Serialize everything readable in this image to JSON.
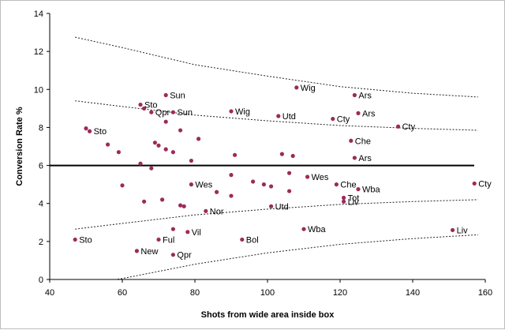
{
  "chart_data": {
    "type": "scatter",
    "xlabel": "Shots from wide area inside box",
    "ylabel": "Conversion Rate %",
    "xlim": [
      40,
      160
    ],
    "ylim": [
      0,
      14
    ],
    "x_ticks": [
      "40",
      "60",
      "80",
      "100",
      "120",
      "140",
      "160"
    ],
    "y_ticks": [
      "0",
      "2",
      "4",
      "6",
      "8",
      "10",
      "12",
      "14"
    ],
    "grid": false,
    "legend": "none",
    "marker_color": "#9c2a5a",
    "mean_line": {
      "y": 6,
      "color": "#000000"
    },
    "control_limits": {
      "upper_outer": [
        [
          47,
          12.75
        ],
        [
          60,
          12.2
        ],
        [
          80,
          11.3
        ],
        [
          100,
          10.7
        ],
        [
          120,
          10.15
        ],
        [
          140,
          9.8
        ],
        [
          158,
          9.6
        ]
      ],
      "upper_inner": [
        [
          47,
          9.4
        ],
        [
          60,
          9.1
        ],
        [
          80,
          8.65
        ],
        [
          100,
          8.35
        ],
        [
          120,
          8.1
        ],
        [
          140,
          7.95
        ],
        [
          158,
          7.85
        ]
      ],
      "lower_inner": [
        [
          47,
          2.65
        ],
        [
          60,
          2.95
        ],
        [
          80,
          3.4
        ],
        [
          100,
          3.7
        ],
        [
          120,
          3.95
        ],
        [
          140,
          4.1
        ],
        [
          158,
          4.2
        ]
      ],
      "lower_outer": [
        [
          47,
          -0.6
        ],
        [
          55,
          -0.1
        ],
        [
          60,
          0.05
        ],
        [
          80,
          0.8
        ],
        [
          100,
          1.4
        ],
        [
          120,
          1.85
        ],
        [
          140,
          2.15
        ],
        [
          158,
          2.35
        ]
      ]
    },
    "points": [
      {
        "x": 47,
        "y": 2.1,
        "label": "Sto"
      },
      {
        "x": 50,
        "y": 7.95,
        "label": ""
      },
      {
        "x": 51,
        "y": 7.8,
        "label": "Sto"
      },
      {
        "x": 56,
        "y": 7.1,
        "label": ""
      },
      {
        "x": 59,
        "y": 6.7,
        "label": ""
      },
      {
        "x": 60,
        "y": 4.95,
        "label": ""
      },
      {
        "x": 64,
        "y": 1.5,
        "label": "New"
      },
      {
        "x": 65,
        "y": 9.2,
        "label": "Sto"
      },
      {
        "x": 66,
        "y": 9.0,
        "label": ""
      },
      {
        "x": 65,
        "y": 6.1,
        "label": ""
      },
      {
        "x": 66,
        "y": 4.1,
        "label": ""
      },
      {
        "x": 68,
        "y": 8.8,
        "label": "Qpr"
      },
      {
        "x": 68,
        "y": 5.85,
        "label": ""
      },
      {
        "x": 69,
        "y": 7.2,
        "label": ""
      },
      {
        "x": 70,
        "y": 7.05,
        "label": ""
      },
      {
        "x": 70,
        "y": 2.1,
        "label": "Ful"
      },
      {
        "x": 71,
        "y": 4.2,
        "label": ""
      },
      {
        "x": 72,
        "y": 9.7,
        "label": "Sun"
      },
      {
        "x": 72,
        "y": 8.3,
        "label": ""
      },
      {
        "x": 72,
        "y": 6.85,
        "label": ""
      },
      {
        "x": 74,
        "y": 6.7,
        "label": ""
      },
      {
        "x": 74,
        "y": 8.8,
        "label": "Sun"
      },
      {
        "x": 74,
        "y": 2.65,
        "label": ""
      },
      {
        "x": 74,
        "y": 1.3,
        "label": "Qpr"
      },
      {
        "x": 76,
        "y": 7.85,
        "label": ""
      },
      {
        "x": 76,
        "y": 3.9,
        "label": ""
      },
      {
        "x": 77,
        "y": 3.85,
        "label": ""
      },
      {
        "x": 78,
        "y": 2.5,
        "label": "Vil"
      },
      {
        "x": 79,
        "y": 6.25,
        "label": ""
      },
      {
        "x": 79,
        "y": 5.0,
        "label": "Wes"
      },
      {
        "x": 81,
        "y": 7.4,
        "label": ""
      },
      {
        "x": 83,
        "y": 3.6,
        "label": "Nor"
      },
      {
        "x": 86,
        "y": 4.6,
        "label": ""
      },
      {
        "x": 90,
        "y": 8.85,
        "label": "Wig"
      },
      {
        "x": 90,
        "y": 5.5,
        "label": ""
      },
      {
        "x": 90,
        "y": 4.4,
        "label": ""
      },
      {
        "x": 91,
        "y": 6.55,
        "label": ""
      },
      {
        "x": 93,
        "y": 2.1,
        "label": "Bol"
      },
      {
        "x": 96,
        "y": 5.15,
        "label": ""
      },
      {
        "x": 99,
        "y": 5.0,
        "label": ""
      },
      {
        "x": 101,
        "y": 4.9,
        "label": ""
      },
      {
        "x": 101,
        "y": 3.85,
        "label": "Utd"
      },
      {
        "x": 103,
        "y": 8.6,
        "label": "Utd"
      },
      {
        "x": 104,
        "y": 6.6,
        "label": ""
      },
      {
        "x": 106,
        "y": 5.6,
        "label": ""
      },
      {
        "x": 106,
        "y": 4.65,
        "label": ""
      },
      {
        "x": 107,
        "y": 6.5,
        "label": ""
      },
      {
        "x": 108,
        "y": 10.1,
        "label": "Wig"
      },
      {
        "x": 110,
        "y": 2.65,
        "label": "Wba"
      },
      {
        "x": 111,
        "y": 5.4,
        "label": "Wes"
      },
      {
        "x": 118,
        "y": 8.45,
        "label": "Cty"
      },
      {
        "x": 119,
        "y": 5.0,
        "label": "Che"
      },
      {
        "x": 121,
        "y": 4.3,
        "label": "Tot"
      },
      {
        "x": 121,
        "y": 4.1,
        "label": "Liv"
      },
      {
        "x": 123,
        "y": 7.3,
        "label": "Che"
      },
      {
        "x": 124,
        "y": 9.7,
        "label": "Ars"
      },
      {
        "x": 125,
        "y": 8.75,
        "label": "Ars"
      },
      {
        "x": 124,
        "y": 6.4,
        "label": "Ars"
      },
      {
        "x": 125,
        "y": 4.75,
        "label": "Wba"
      },
      {
        "x": 136,
        "y": 8.05,
        "label": "Cty"
      },
      {
        "x": 151,
        "y": 2.6,
        "label": "Liv"
      },
      {
        "x": 157,
        "y": 5.05,
        "label": "Cty"
      }
    ]
  }
}
